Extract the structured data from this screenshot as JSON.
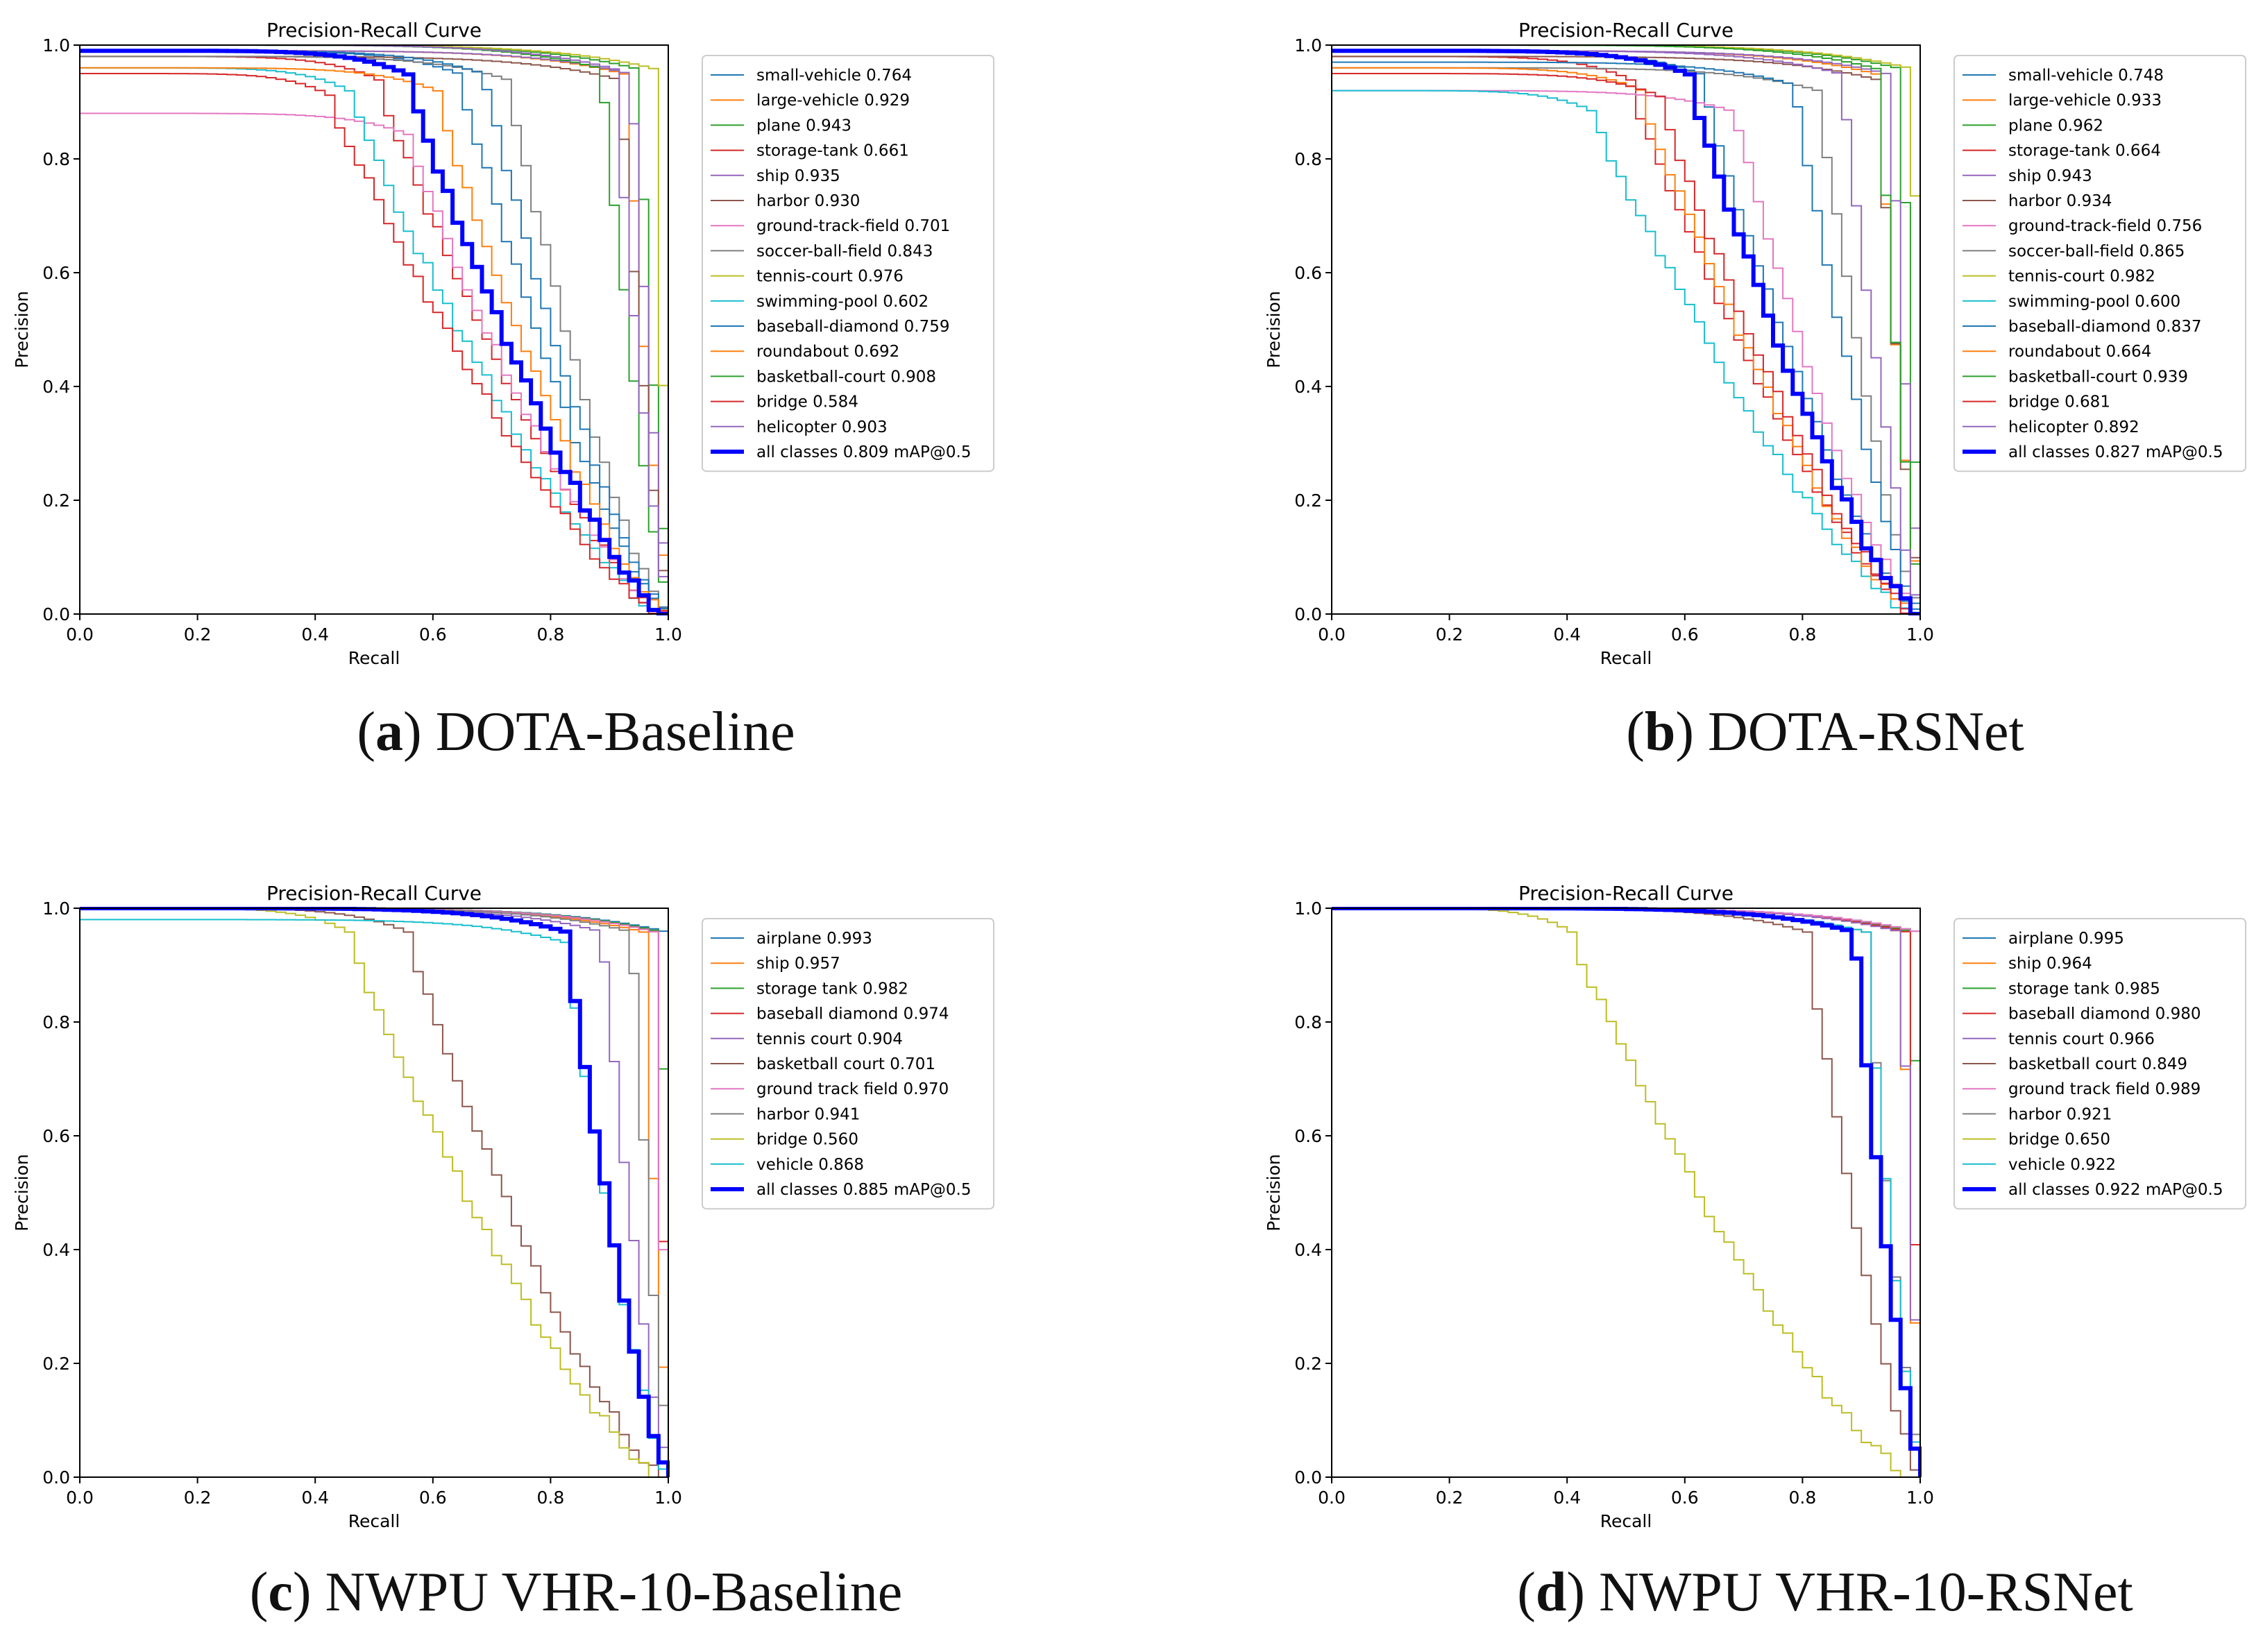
{
  "chart_data": [
    {
      "type": "line",
      "title": "Precision-Recall Curve",
      "xlabel": "Recall",
      "ylabel": "Precision",
      "xlim": [
        0,
        1
      ],
      "ylim": [
        0,
        1
      ],
      "ticks": [
        "0.0",
        "0.2",
        "0.4",
        "0.6",
        "0.8",
        "1.0"
      ],
      "caption_letter": "a",
      "caption_text": "DOTA-Baseline",
      "series": [
        {
          "name": "small-vehicle",
          "value": "0.764",
          "color": "#1f77b4",
          "knee": 0.64,
          "top": 0.99
        },
        {
          "name": "large-vehicle",
          "value": "0.929",
          "color": "#ff7f0e",
          "knee": 0.92,
          "top": 0.99
        },
        {
          "name": "plane",
          "value": "0.943",
          "color": "#2ca02c",
          "knee": 0.94,
          "top": 1.0
        },
        {
          "name": "storage-tank",
          "value": "0.661",
          "color": "#d62728",
          "knee": 0.5,
          "top": 0.98
        },
        {
          "name": "ship",
          "value": "0.935",
          "color": "#9467bd",
          "knee": 0.93,
          "top": 0.99
        },
        {
          "name": "harbor",
          "value": "0.930",
          "color": "#8c564b",
          "knee": 0.91,
          "top": 0.98
        },
        {
          "name": "ground-track-field",
          "value": "0.701",
          "color": "#e377c2",
          "knee": 0.55,
          "top": 0.88
        },
        {
          "name": "soccer-ball-field",
          "value": "0.843",
          "color": "#7f7f7f",
          "knee": 0.72,
          "top": 0.98
        },
        {
          "name": "tennis-court",
          "value": "0.976",
          "color": "#bcbd22",
          "knee": 0.97,
          "top": 1.0
        },
        {
          "name": "swimming-pool",
          "value": "0.602",
          "color": "#17becf",
          "knee": 0.45,
          "top": 0.96
        },
        {
          "name": "baseball-diamond",
          "value": "0.759",
          "color": "#1f77b4",
          "knee": 0.68,
          "top": 0.99
        },
        {
          "name": "roundabout",
          "value": "0.692",
          "color": "#ff7f0e",
          "knee": 0.6,
          "top": 0.96
        },
        {
          "name": "basketball-court",
          "value": "0.908",
          "color": "#2ca02c",
          "knee": 0.88,
          "top": 1.0
        },
        {
          "name": "bridge",
          "value": "0.584",
          "color": "#d62728",
          "knee": 0.42,
          "top": 0.95
        },
        {
          "name": "helicopter",
          "value": "0.903",
          "color": "#9467bd",
          "knee": 0.9,
          "top": 1.0
        }
      ],
      "all_classes": {
        "name": "all classes",
        "value": "0.809",
        "suffix": "mAP@0.5",
        "color": "#0000ff",
        "knee": 0.55,
        "top": 0.99
      }
    },
    {
      "type": "line",
      "title": "Precision-Recall Curve",
      "xlabel": "Recall",
      "ylabel": "Precision",
      "xlim": [
        0,
        1
      ],
      "ylim": [
        0,
        1
      ],
      "ticks": [
        "0.0",
        "0.2",
        "0.4",
        "0.6",
        "0.8",
        "1.0"
      ],
      "caption_letter": "b",
      "caption_text": "DOTA-RSNet",
      "series": [
        {
          "name": "small-vehicle",
          "value": "0.748",
          "color": "#1f77b4",
          "knee": 0.62,
          "top": 0.99
        },
        {
          "name": "large-vehicle",
          "value": "0.933",
          "color": "#ff7f0e",
          "knee": 0.92,
          "top": 0.99
        },
        {
          "name": "plane",
          "value": "0.962",
          "color": "#2ca02c",
          "knee": 0.96,
          "top": 1.0
        },
        {
          "name": "storage-tank",
          "value": "0.664",
          "color": "#d62728",
          "knee": 0.5,
          "top": 0.98
        },
        {
          "name": "ship",
          "value": "0.943",
          "color": "#9467bd",
          "knee": 0.94,
          "top": 0.99
        },
        {
          "name": "harbor",
          "value": "0.934",
          "color": "#8c564b",
          "knee": 0.92,
          "top": 0.98
        },
        {
          "name": "ground-track-field",
          "value": "0.756",
          "color": "#e377c2",
          "knee": 0.68,
          "top": 0.92
        },
        {
          "name": "soccer-ball-field",
          "value": "0.865",
          "color": "#7f7f7f",
          "knee": 0.82,
          "top": 0.96
        },
        {
          "name": "tennis-court",
          "value": "0.982",
          "color": "#bcbd22",
          "knee": 0.98,
          "top": 1.0
        },
        {
          "name": "swimming-pool",
          "value": "0.600",
          "color": "#17becf",
          "knee": 0.44,
          "top": 0.92
        },
        {
          "name": "baseball-diamond",
          "value": "0.837",
          "color": "#1f77b4",
          "knee": 0.78,
          "top": 0.97
        },
        {
          "name": "roundabout",
          "value": "0.664",
          "color": "#ff7f0e",
          "knee": 0.52,
          "top": 0.96
        },
        {
          "name": "basketball-court",
          "value": "0.939",
          "color": "#2ca02c",
          "knee": 0.92,
          "top": 1.0
        },
        {
          "name": "bridge",
          "value": "0.681",
          "color": "#d62728",
          "knee": 0.55,
          "top": 0.95
        },
        {
          "name": "helicopter",
          "value": "0.892",
          "color": "#9467bd",
          "knee": 0.86,
          "top": 0.99
        }
      ],
      "all_classes": {
        "name": "all classes",
        "value": "0.827",
        "suffix": "mAP@0.5",
        "color": "#0000ff",
        "knee": 0.6,
        "top": 0.99
      }
    },
    {
      "type": "line",
      "title": "Precision-Recall Curve",
      "xlabel": "Recall",
      "ylabel": "Precision",
      "xlim": [
        0,
        1
      ],
      "ylim": [
        0,
        1
      ],
      "ticks": [
        "0.0",
        "0.2",
        "0.4",
        "0.6",
        "0.8",
        "1.0"
      ],
      "caption_letter": "c",
      "caption_text": "NWPU VHR-10-Baseline",
      "series": [
        {
          "name": "airplane",
          "value": "0.993",
          "color": "#1f77b4",
          "knee": 0.99,
          "top": 1.0
        },
        {
          "name": "ship",
          "value": "0.957",
          "color": "#ff7f0e",
          "knee": 0.95,
          "top": 1.0
        },
        {
          "name": "storage tank",
          "value": "0.982",
          "color": "#2ca02c",
          "knee": 0.98,
          "top": 1.0
        },
        {
          "name": "baseball diamond",
          "value": "0.974",
          "color": "#d62728",
          "knee": 0.97,
          "top": 1.0
        },
        {
          "name": "tennis court",
          "value": "0.904",
          "color": "#9467bd",
          "knee": 0.88,
          "top": 1.0
        },
        {
          "name": "basketball court",
          "value": "0.701",
          "color": "#8c564b",
          "knee": 0.55,
          "top": 1.0
        },
        {
          "name": "ground track field",
          "value": "0.970",
          "color": "#e377c2",
          "knee": 0.97,
          "top": 1.0
        },
        {
          "name": "harbor",
          "value": "0.941",
          "color": "#7f7f7f",
          "knee": 0.93,
          "top": 1.0
        },
        {
          "name": "bridge",
          "value": "0.560",
          "color": "#bcbd22",
          "knee": 0.45,
          "top": 1.0
        },
        {
          "name": "vehicle",
          "value": "0.868",
          "color": "#17becf",
          "knee": 0.82,
          "top": 0.98
        }
      ],
      "all_classes": {
        "name": "all classes",
        "value": "0.885",
        "suffix": "mAP@0.5",
        "color": "#0000ff",
        "knee": 0.82,
        "top": 1.0
      }
    },
    {
      "type": "line",
      "title": "Precision-Recall Curve",
      "xlabel": "Recall",
      "ylabel": "Precision",
      "xlim": [
        0,
        1
      ],
      "ylim": [
        0,
        1
      ],
      "ticks": [
        "0.0",
        "0.2",
        "0.4",
        "0.6",
        "0.8",
        "1.0"
      ],
      "caption_letter": "d",
      "caption_text": "NWPU VHR-10-RSNet",
      "series": [
        {
          "name": "airplane",
          "value": "0.995",
          "color": "#1f77b4",
          "knee": 0.99,
          "top": 1.0
        },
        {
          "name": "ship",
          "value": "0.964",
          "color": "#ff7f0e",
          "knee": 0.96,
          "top": 1.0
        },
        {
          "name": "storage tank",
          "value": "0.985",
          "color": "#2ca02c",
          "knee": 0.98,
          "top": 1.0
        },
        {
          "name": "baseball diamond",
          "value": "0.980",
          "color": "#d62728",
          "knee": 0.97,
          "top": 1.0
        },
        {
          "name": "tennis court",
          "value": "0.966",
          "color": "#9467bd",
          "knee": 0.96,
          "top": 1.0
        },
        {
          "name": "basketball court",
          "value": "0.849",
          "color": "#8c564b",
          "knee": 0.8,
          "top": 1.0
        },
        {
          "name": "ground track field",
          "value": "0.989",
          "color": "#e377c2",
          "knee": 0.99,
          "top": 1.0
        },
        {
          "name": "harbor",
          "value": "0.921",
          "color": "#7f7f7f",
          "knee": 0.9,
          "top": 1.0
        },
        {
          "name": "bridge",
          "value": "0.650",
          "color": "#bcbd22",
          "knee": 0.4,
          "top": 1.0
        },
        {
          "name": "vehicle",
          "value": "0.922",
          "color": "#17becf",
          "knee": 0.9,
          "top": 1.0
        }
      ],
      "all_classes": {
        "name": "all classes",
        "value": "0.922",
        "suffix": "mAP@0.5",
        "color": "#0000ff",
        "knee": 0.88,
        "top": 1.0
      }
    }
  ]
}
